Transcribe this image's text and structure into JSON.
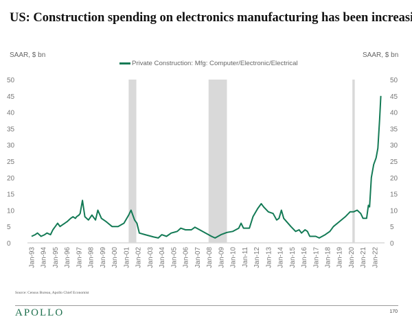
{
  "header": {
    "title": "US: Construction spending on electronics manufacturing has been increasing"
  },
  "footer": {
    "source": "Source: Census Bureau, Apollo Chief Economist",
    "logo": "APOLLO",
    "page": "170"
  },
  "colors": {
    "line": "#137a55",
    "recession": "#d9d9d9",
    "axis": "#d9d9d9"
  },
  "chart_data": {
    "type": "line",
    "title": "US: Construction spending on electronics manufacturing has been increasing",
    "ylabel_left": "SAAR, $ bn",
    "ylabel_right": "SAAR, $ bn",
    "ylim": [
      0,
      50
    ],
    "yticks": [
      "0",
      "5",
      "10",
      "15",
      "20",
      "25",
      "30",
      "35",
      "40",
      "45",
      "50"
    ],
    "xlim": [
      1993,
      2022.6
    ],
    "xticks": [
      "Jan-93",
      "Jan-94",
      "Jan-95",
      "Jan-96",
      "Jan-97",
      "Jan-98",
      "Jan-99",
      "Jan-00",
      "Jan-01",
      "Jan-02",
      "Jan-03",
      "Jan-04",
      "Jan-05",
      "Jan-06",
      "Jan-07",
      "Jan-08",
      "Jan-09",
      "Jan-10",
      "Jan-11",
      "Jan-12",
      "Jan-13",
      "Jan-14",
      "Jan-15",
      "Jan-16",
      "Jan-17",
      "Jan-18",
      "Jan-19",
      "Jan-20",
      "Jan-21",
      "Jan-22"
    ],
    "legend": "top-center",
    "recessions": [
      [
        2001.2,
        2001.85
      ],
      [
        2007.95,
        2009.5
      ],
      [
        2020.1,
        2020.3
      ]
    ],
    "series": [
      {
        "name": "Private Construction: Mfg: Computer/Electronic/Electrical",
        "x": [
          1993.0,
          1993.3,
          1993.5,
          1993.8,
          1994.1,
          1994.3,
          1994.6,
          1994.8,
          1995.0,
          1995.2,
          1995.4,
          1995.6,
          1995.8,
          1996.0,
          1996.3,
          1996.5,
          1996.7,
          1996.8,
          1997.0,
          1997.1,
          1997.3,
          1997.5,
          1997.8,
          1998.1,
          1998.4,
          1998.6,
          1998.9,
          1999.3,
          1999.8,
          2000.3,
          2000.8,
          2001.2,
          2001.4,
          2001.7,
          2001.9,
          2002.1,
          2002.6,
          2003.3,
          2003.7,
          2004.0,
          2004.4,
          2004.8,
          2005.3,
          2005.6,
          2006.0,
          2006.5,
          2006.8,
          2007.2,
          2007.7,
          2008.2,
          2008.5,
          2009.0,
          2009.5,
          2010.0,
          2010.5,
          2010.7,
          2010.9,
          2011.4,
          2011.7,
          2012.1,
          2012.4,
          2012.6,
          2013.0,
          2013.4,
          2013.7,
          2013.9,
          2014.1,
          2014.3,
          2014.9,
          2015.3,
          2015.6,
          2015.8,
          2016.1,
          2016.3,
          2016.5,
          2017.0,
          2017.3,
          2017.8,
          2018.2,
          2018.5,
          2019.0,
          2019.5,
          2019.9,
          2020.2,
          2020.5,
          2020.8,
          2021.0,
          2021.3,
          2021.45,
          2021.55,
          2021.7,
          2021.9,
          2022.1,
          2022.25,
          2022.4,
          2022.5
        ],
        "y": [
          2,
          2.5,
          3,
          2,
          2.5,
          3,
          2.5,
          4,
          5,
          6,
          5,
          5.5,
          6,
          6.5,
          7.5,
          8,
          7.5,
          8,
          8.5,
          9,
          13,
          8,
          7,
          8.5,
          7,
          10,
          7.5,
          6.5,
          5,
          5,
          6,
          8.5,
          10,
          7,
          6,
          3,
          2.5,
          1.8,
          1.5,
          2.5,
          2,
          3,
          3.5,
          4.5,
          4,
          4,
          4.8,
          4,
          3,
          2,
          1.5,
          2.5,
          3.2,
          3.5,
          4.5,
          6,
          4.5,
          4.5,
          8,
          10.5,
          12,
          11,
          9.5,
          9,
          7,
          7.5,
          10,
          7.5,
          5,
          3.5,
          4,
          3,
          4,
          3.5,
          2,
          2,
          1.5,
          2.5,
          3.5,
          5,
          6.5,
          8,
          9.5,
          9.5,
          10,
          9,
          7.5,
          7.5,
          11.5,
          11,
          20,
          24,
          26,
          29,
          38,
          45
        ]
      }
    ]
  }
}
